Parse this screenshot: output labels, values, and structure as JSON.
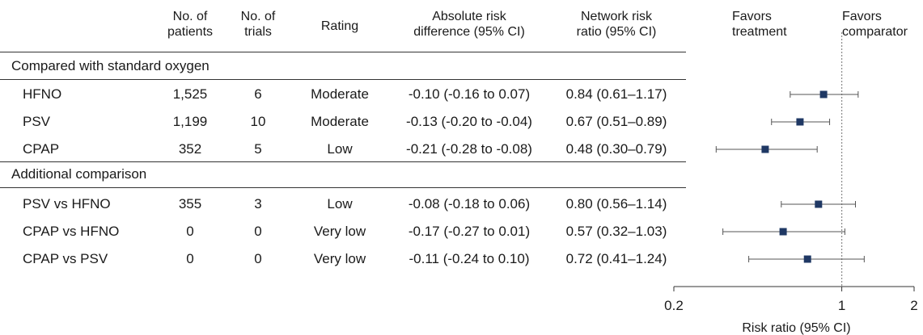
{
  "headers": {
    "patients": "No. of\npatients",
    "trials": "No. of\ntrials",
    "rating": "Rating",
    "ard": "Absolute risk\ndifference (95% CI)",
    "nrr": "Network risk\nratio (95% CI)",
    "favors_treatment": "Favors\ntreatment",
    "favors_comparator": "Favors\ncomparator"
  },
  "sections": [
    {
      "title": "Compared with standard oxygen",
      "rows": [
        {
          "label": "HFNO",
          "patients": "1,525",
          "trials": "6",
          "rating": "Moderate",
          "ard": "-0.10 (-0.16 to 0.07)",
          "nrr": "0.84 (0.61–1.17)"
        },
        {
          "label": "PSV",
          "patients": "1,199",
          "trials": "10",
          "rating": "Moderate",
          "ard": "-0.13 (-0.20 to -0.04)",
          "nrr": "0.67 (0.51–0.89)"
        },
        {
          "label": "CPAP",
          "patients": "352",
          "trials": "5",
          "rating": "Low",
          "ard": "-0.21 (-0.28 to -0.08)",
          "nrr": "0.48 (0.30–0.79)"
        }
      ]
    },
    {
      "title": "Additional comparison",
      "rows": [
        {
          "label": "PSV vs HFNO",
          "patients": "355",
          "trials": "3",
          "rating": "Low",
          "ard": "-0.08 (-0.18 to 0.06)",
          "nrr": "0.80 (0.56–1.14)"
        },
        {
          "label": "CPAP vs HFNO",
          "patients": "0",
          "trials": "0",
          "rating": "Very low",
          "ard": "-0.17 (-0.27 to 0.01)",
          "nrr": "0.57 (0.32–1.03)"
        },
        {
          "label": "CPAP vs PSV",
          "patients": "0",
          "trials": "0",
          "rating": "Very low",
          "ard": "-0.11 (-0.24 to 0.10)",
          "nrr": "0.72 (0.41–1.24)"
        }
      ]
    }
  ],
  "chart_data": {
    "type": "forest",
    "xlabel": "Risk ratio (95% CI)",
    "xscale": "log",
    "xlim": [
      0.2,
      2
    ],
    "ticks": [
      0.2,
      1,
      2
    ],
    "tick_labels": [
      "0.2",
      "1",
      "2"
    ],
    "reference_line": 1,
    "series": [
      {
        "name": "HFNO",
        "estimate": 0.84,
        "lower": 0.61,
        "upper": 1.17
      },
      {
        "name": "PSV",
        "estimate": 0.67,
        "lower": 0.51,
        "upper": 0.89
      },
      {
        "name": "CPAP",
        "estimate": 0.48,
        "lower": 0.3,
        "upper": 0.79
      },
      {
        "name": "PSV vs HFNO",
        "estimate": 0.8,
        "lower": 0.56,
        "upper": 1.14
      },
      {
        "name": "CPAP vs HFNO",
        "estimate": 0.57,
        "lower": 0.32,
        "upper": 1.03
      },
      {
        "name": "CPAP vs PSV",
        "estimate": 0.72,
        "lower": 0.41,
        "upper": 1.24
      }
    ],
    "colors": {
      "marker": "#1f3864",
      "whisker": "#555555",
      "reference": "#8a8a8a",
      "axis": "#333333"
    }
  }
}
